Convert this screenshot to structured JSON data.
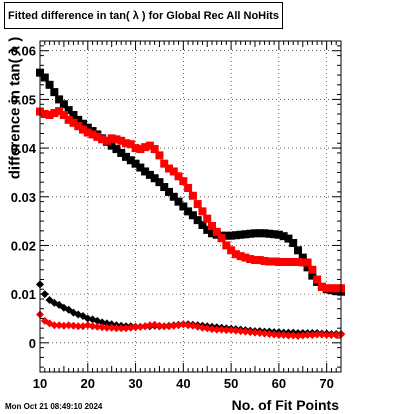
{
  "title": "Fitted difference in tan( λ ) for Global Rec All NoHits",
  "timestamp": "Mon Oct 21 08:49:10 2024",
  "chart_data": {
    "type": "scatter",
    "title": "Fitted difference in tan( λ ) for Global Rec All NoHits",
    "xlabel": "No. of Fit Points",
    "ylabel": "difference in tan( λ )",
    "xlim": [
      10,
      73
    ],
    "ylim": [
      -0.006,
      0.062
    ],
    "xticks": [
      10,
      20,
      30,
      40,
      50,
      60,
      70
    ],
    "yticks": [
      0,
      0.01,
      0.02,
      0.03,
      0.04,
      0.05,
      0.06
    ],
    "ytick_labels": [
      "0",
      "0.01",
      "0.02",
      "0.03",
      "0.04",
      "0.05",
      "0.06"
    ],
    "series": [
      {
        "color": "#000000",
        "marker": "square",
        "x": [
          10,
          11,
          12,
          13,
          14,
          15,
          16,
          17,
          18,
          19,
          20,
          21,
          22,
          23,
          24,
          25,
          26,
          27,
          28,
          29,
          30,
          31,
          32,
          33,
          34,
          35,
          36,
          37,
          38,
          39,
          40,
          41,
          42,
          43,
          44,
          45,
          46,
          47,
          48,
          49,
          50,
          51,
          52,
          53,
          54,
          55,
          56,
          57,
          58,
          59,
          60,
          61,
          62,
          63,
          64,
          65,
          66,
          67,
          68,
          69,
          70,
          71,
          72,
          73
        ],
        "y": [
          0.0555,
          0.0545,
          0.053,
          0.0515,
          0.05,
          0.049,
          0.0478,
          0.0468,
          0.0458,
          0.045,
          0.0442,
          0.0435,
          0.0428,
          0.042,
          0.0413,
          0.0405,
          0.0398,
          0.039,
          0.0382,
          0.0375,
          0.0368,
          0.036,
          0.0352,
          0.0345,
          0.0338,
          0.033,
          0.032,
          0.031,
          0.03,
          0.029,
          0.028,
          0.027,
          0.0262,
          0.0252,
          0.0242,
          0.0232,
          0.0225,
          0.0222,
          0.022,
          0.022,
          0.022,
          0.0221,
          0.0222,
          0.0223,
          0.0224,
          0.0225,
          0.0225,
          0.0225,
          0.0224,
          0.0223,
          0.0222,
          0.0219,
          0.0214,
          0.0205,
          0.019,
          0.0175,
          0.0155,
          0.0138,
          0.0125,
          0.0115,
          0.011,
          0.0108,
          0.0106,
          0.0105
        ]
      },
      {
        "color": "#ff0000",
        "marker": "square",
        "x": [
          10,
          11,
          12,
          13,
          14,
          15,
          16,
          17,
          18,
          19,
          20,
          21,
          22,
          23,
          24,
          25,
          26,
          27,
          28,
          29,
          30,
          31,
          32,
          33,
          34,
          35,
          36,
          37,
          38,
          39,
          40,
          41,
          42,
          43,
          44,
          45,
          46,
          47,
          48,
          49,
          50,
          51,
          52,
          53,
          54,
          55,
          56,
          57,
          58,
          59,
          60,
          61,
          62,
          63,
          64,
          65,
          66,
          67,
          68,
          69,
          70,
          71,
          72,
          73
        ],
        "y": [
          0.0475,
          0.047,
          0.0468,
          0.0472,
          0.0476,
          0.0468,
          0.0458,
          0.0452,
          0.0445,
          0.0438,
          0.0432,
          0.0428,
          0.0423,
          0.0418,
          0.0415,
          0.042,
          0.0418,
          0.0415,
          0.041,
          0.0408,
          0.04,
          0.0398,
          0.0402,
          0.0405,
          0.0398,
          0.0385,
          0.0368,
          0.0358,
          0.0352,
          0.0342,
          0.0332,
          0.0318,
          0.0302,
          0.0285,
          0.027,
          0.0255,
          0.024,
          0.0228,
          0.0215,
          0.02,
          0.019,
          0.0182,
          0.0178,
          0.0175,
          0.0172,
          0.017,
          0.017,
          0.0168,
          0.0167,
          0.0167,
          0.0166,
          0.0166,
          0.0166,
          0.0166,
          0.0166,
          0.0165,
          0.0165,
          0.015,
          0.013,
          0.0115,
          0.0112,
          0.0112,
          0.0112,
          0.0112
        ]
      },
      {
        "color": "#000000",
        "marker": "diamond",
        "x": [
          10,
          11,
          12,
          13,
          14,
          15,
          16,
          17,
          18,
          19,
          20,
          21,
          22,
          23,
          24,
          25,
          26,
          27,
          28,
          29,
          30,
          31,
          32,
          33,
          34,
          35,
          36,
          37,
          38,
          39,
          40,
          41,
          42,
          43,
          44,
          45,
          46,
          47,
          48,
          49,
          50,
          51,
          52,
          53,
          54,
          55,
          56,
          57,
          58,
          59,
          60,
          61,
          62,
          63,
          64,
          65,
          66,
          67,
          68,
          69,
          70,
          71,
          72,
          73
        ],
        "y": [
          0.012,
          0.01,
          0.0088,
          0.0082,
          0.0078,
          0.0072,
          0.0068,
          0.0062,
          0.0058,
          0.0055,
          0.005,
          0.0048,
          0.0045,
          0.0042,
          0.004,
          0.0038,
          0.0036,
          0.0035,
          0.0034,
          0.0034,
          0.0033,
          0.0033,
          0.0034,
          0.0034,
          0.0035,
          0.0034,
          0.0034,
          0.0035,
          0.0036,
          0.0037,
          0.0038,
          0.0038,
          0.0037,
          0.0036,
          0.0035,
          0.0034,
          0.0033,
          0.0032,
          0.0031,
          0.003,
          0.0029,
          0.0028,
          0.0027,
          0.0026,
          0.0025,
          0.0024,
          0.0024,
          0.0023,
          0.0023,
          0.0022,
          0.0022,
          0.0021,
          0.0021,
          0.0021,
          0.002,
          0.002,
          0.002,
          0.002,
          0.002,
          0.0019,
          0.0019,
          0.0018,
          0.0018,
          0.0018
        ]
      },
      {
        "color": "#ff0000",
        "marker": "diamond",
        "x": [
          10,
          11,
          12,
          13,
          14,
          15,
          16,
          17,
          18,
          19,
          20,
          21,
          22,
          23,
          24,
          25,
          26,
          27,
          28,
          29,
          30,
          31,
          32,
          33,
          34,
          35,
          36,
          37,
          38,
          39,
          40,
          41,
          42,
          43,
          44,
          45,
          46,
          47,
          48,
          49,
          50,
          51,
          52,
          53,
          54,
          55,
          56,
          57,
          58,
          59,
          60,
          61,
          62,
          63,
          64,
          65,
          66,
          67,
          68,
          69,
          70,
          71,
          72,
          73
        ],
        "y": [
          0.0058,
          0.0045,
          0.004,
          0.0036,
          0.0036,
          0.0035,
          0.0036,
          0.0035,
          0.0034,
          0.0034,
          0.0036,
          0.0034,
          0.0033,
          0.0032,
          0.0031,
          0.0031,
          0.003,
          0.003,
          0.003,
          0.0031,
          0.0032,
          0.0033,
          0.0034,
          0.0036,
          0.0037,
          0.0035,
          0.0034,
          0.0034,
          0.0035,
          0.0036,
          0.0038,
          0.0036,
          0.0035,
          0.0033,
          0.0031,
          0.003,
          0.0028,
          0.0027,
          0.0027,
          0.0026,
          0.0026,
          0.0025,
          0.0024,
          0.0023,
          0.0022,
          0.0021,
          0.002,
          0.0019,
          0.0018,
          0.0017,
          0.0016,
          0.0016,
          0.0015,
          0.0015,
          0.0014,
          0.0015,
          0.0016,
          0.0016,
          0.0017,
          0.0017,
          0.0016,
          0.0016,
          0.0016,
          0.0017
        ]
      }
    ]
  }
}
